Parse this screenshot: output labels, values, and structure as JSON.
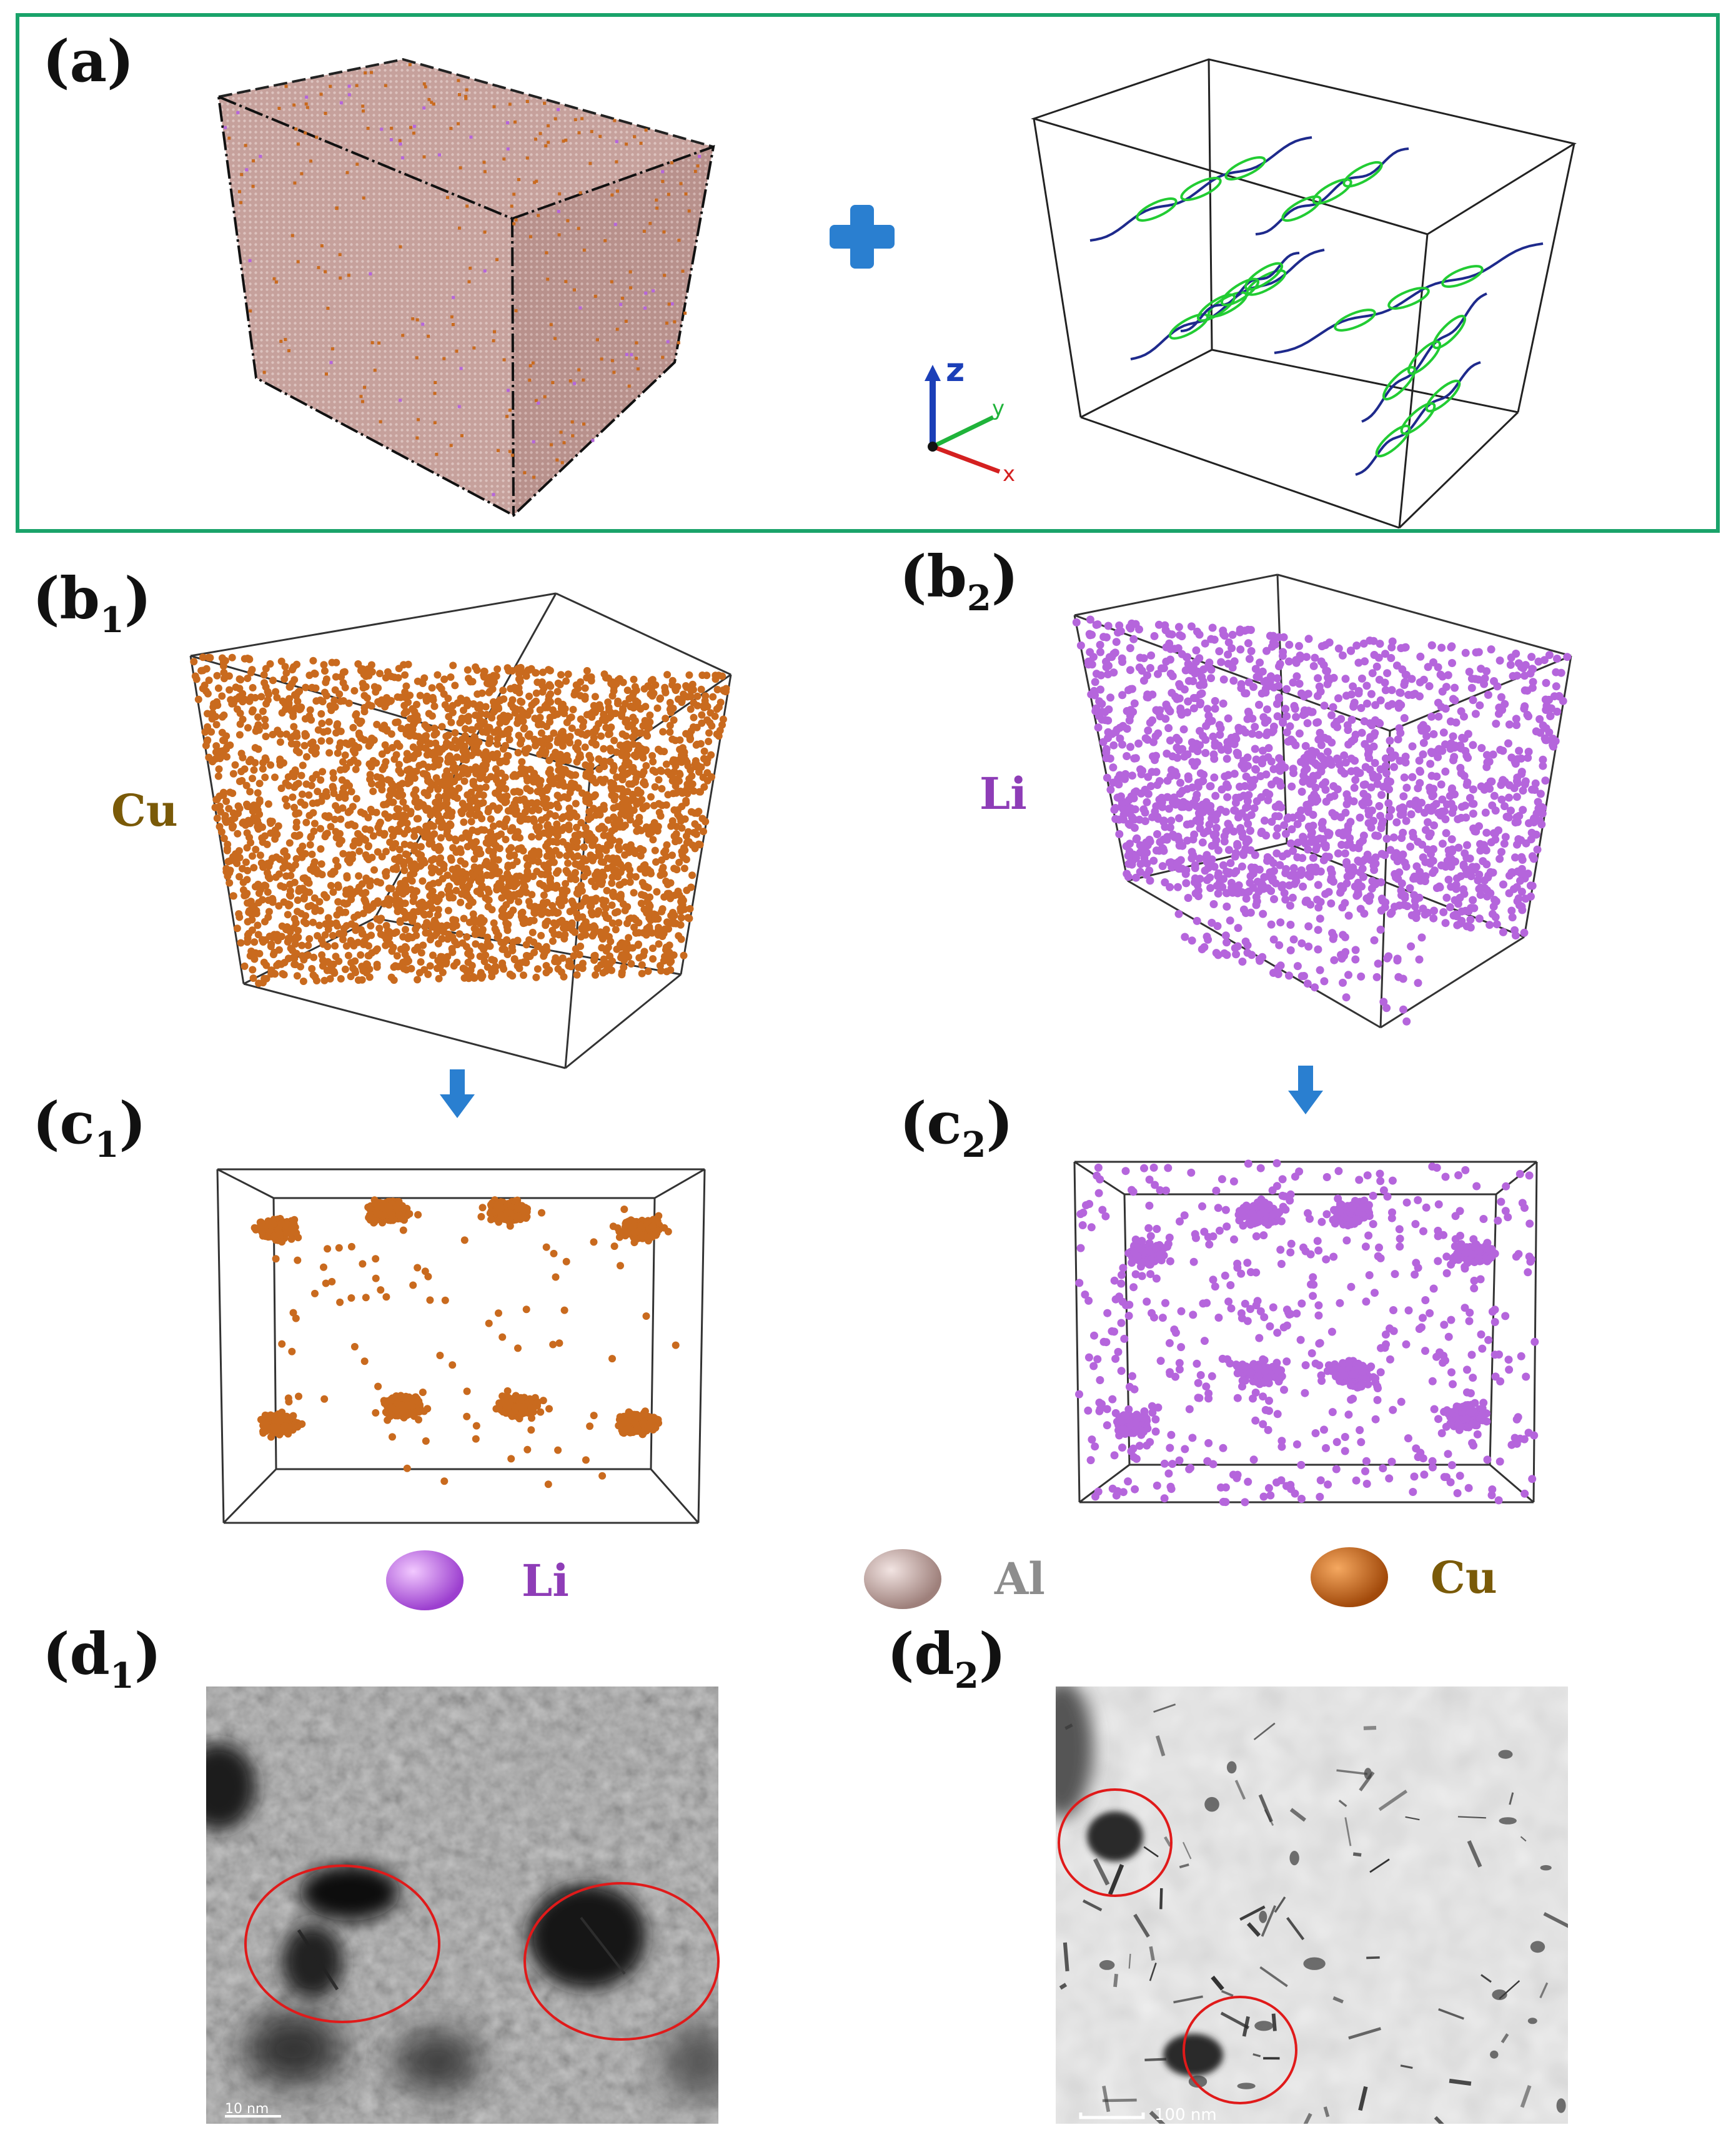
{
  "panels": {
    "a": "(a)",
    "b1": {
      "main": "(b",
      "sub": "1",
      "close": ")"
    },
    "b2": {
      "main": "(b",
      "sub": "2",
      "close": ")"
    },
    "c1": {
      "main": "(c",
      "sub": "1",
      "close": ")"
    },
    "c2": {
      "main": "(c",
      "sub": "2",
      "close": ")"
    },
    "d1": {
      "main": "(d",
      "sub": "1",
      "close": ")"
    },
    "d2": {
      "main": "(d",
      "sub": "2",
      "close": ")"
    }
  },
  "axes": {
    "z": "z",
    "y": "y",
    "x": "x"
  },
  "element_labels": {
    "b1": "Cu",
    "b2": "Li"
  },
  "legend": [
    {
      "label": "Li",
      "color": "#b05bd6",
      "text_color": "#8e3db7"
    },
    {
      "label": "Al",
      "color": "#b79b97",
      "text_color": "#8d8d8d"
    },
    {
      "label": "Cu",
      "color": "#c8661a",
      "text_color": "#7a5a08"
    }
  ],
  "scale_bars": {
    "d1": "10 nm",
    "d2": "100 nm"
  },
  "colors": {
    "frame_green": "#1aa36a",
    "cu_atom": "#c96a1e",
    "li_atom": "#b565dc",
    "al_face": "#c9a4a0",
    "dislocation_green": "#22cc33",
    "dislocation_blue": "#1e2a8c",
    "arrow_blue": "#2a7fd0",
    "circle_red": "#e01a1a"
  }
}
